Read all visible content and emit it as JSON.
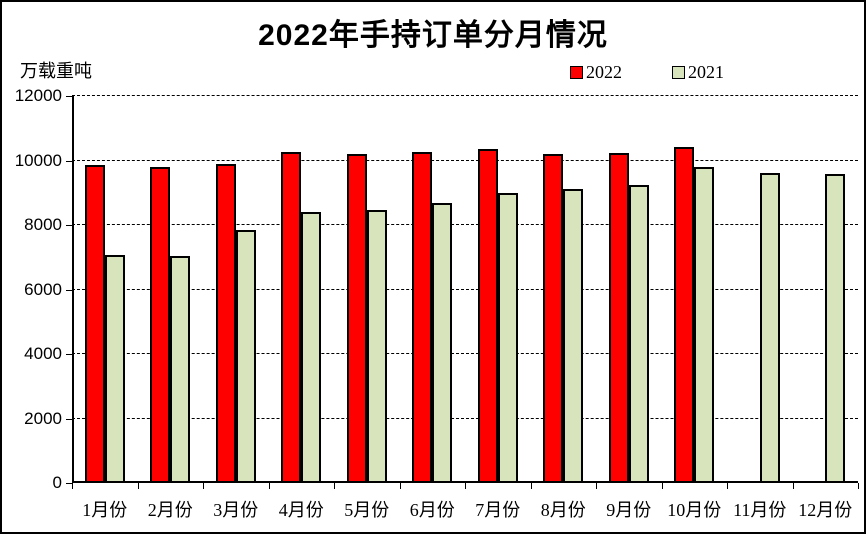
{
  "title": "2022年手持订单分月情况",
  "unit_label": "万载重吨",
  "legend": [
    {
      "name": "2022",
      "color": "#ff0000"
    },
    {
      "name": "2021",
      "color": "#d7e4bc"
    }
  ],
  "chart_data": {
    "type": "bar",
    "title": "2022年手持订单分月情况",
    "xlabel": "",
    "ylabel": "万载重吨",
    "categories": [
      "1月份",
      "2月份",
      "3月份",
      "4月份",
      "5月份",
      "6月份",
      "7月份",
      "8月份",
      "9月份",
      "10月份",
      "11月份",
      "12月份"
    ],
    "series": [
      {
        "name": "2022",
        "color": "#ff0000",
        "values": [
          9860,
          9790,
          9900,
          10250,
          10200,
          10270,
          10360,
          10200,
          10240,
          10430,
          null,
          null
        ]
      },
      {
        "name": "2021",
        "color": "#d7e4bc",
        "values": [
          7070,
          7040,
          7840,
          8410,
          8470,
          8670,
          8980,
          9110,
          9240,
          9810,
          9620,
          9580
        ]
      }
    ],
    "ylim": [
      0,
      12000
    ],
    "yticks": [
      0,
      2000,
      4000,
      6000,
      8000,
      10000,
      12000
    ],
    "grid": true,
    "gridline_style": "dashed",
    "legend_position": "top-right",
    "bar_border_color": "#000000"
  }
}
